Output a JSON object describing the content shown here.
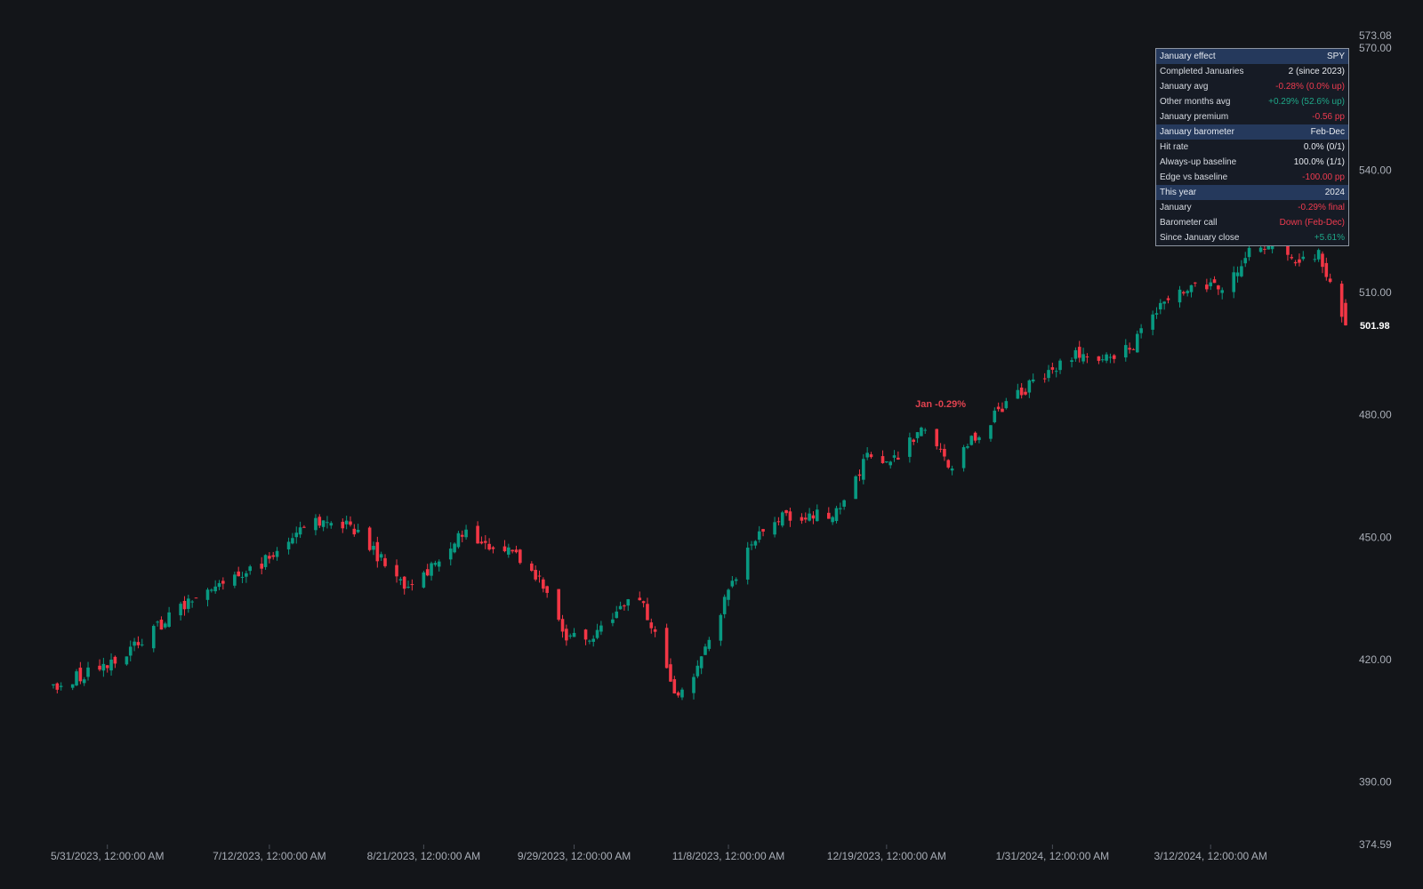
{
  "chart_data": {
    "type": "candlestick",
    "symbol": "SPY",
    "colors": {
      "background": "#131519",
      "up": "#089981",
      "down": "#f23645",
      "axis_text": "#a8adb6"
    },
    "y_axis": {
      "range": [
        374.59,
        573.08
      ],
      "ticks": [
        "573.08",
        "570.00",
        "540.00",
        "510.00",
        "480.00",
        "450.00",
        "420.00",
        "390.00",
        "374.59"
      ],
      "last_price": "501.98",
      "position": "right"
    },
    "x_axis": {
      "tick_labels": [
        "5/31/2023, 12:00:00 AM",
        "7/12/2023, 12:00:00 AM",
        "8/21/2023, 12:00:00 AM",
        "9/29/2023, 12:00:00 AM",
        "11/8/2023, 12:00:00 AM",
        "12/19/2023, 12:00:00 AM",
        "1/31/2024, 12:00:00 AM",
        "3/12/2024, 12:00:00 AM"
      ],
      "tick_dates": [
        "2023-05-31",
        "2023-07-12",
        "2023-08-21",
        "2023-09-29",
        "2023-11-08",
        "2023-12-19",
        "2024-01-31",
        "2024-03-12"
      ],
      "range": [
        "2023-05-17",
        "2024-04-16"
      ]
    },
    "grid": false,
    "annotation": {
      "text": "Jan -0.29%",
      "date": "2024-01-02",
      "price": 481.5
    },
    "price_path": [
      {
        "date": "2023-05-17",
        "price": 413.5
      },
      {
        "date": "2023-06-01",
        "price": 419
      },
      {
        "date": "2023-06-20",
        "price": 433
      },
      {
        "date": "2023-07-04",
        "price": 440
      },
      {
        "date": "2023-07-12",
        "price": 445
      },
      {
        "date": "2023-07-19",
        "price": 452
      },
      {
        "date": "2023-07-27",
        "price": 455
      },
      {
        "date": "2023-08-03",
        "price": 452
      },
      {
        "date": "2023-08-16",
        "price": 438
      },
      {
        "date": "2023-08-21",
        "price": 440
      },
      {
        "date": "2023-08-31",
        "price": 451
      },
      {
        "date": "2023-09-05",
        "price": 448
      },
      {
        "date": "2023-09-12",
        "price": 448
      },
      {
        "date": "2023-09-20",
        "price": 439
      },
      {
        "date": "2023-09-27",
        "price": 426
      },
      {
        "date": "2023-10-03",
        "price": 424
      },
      {
        "date": "2023-10-09",
        "price": 431
      },
      {
        "date": "2023-10-16",
        "price": 436
      },
      {
        "date": "2023-10-26",
        "price": 410
      },
      {
        "date": "2023-10-31",
        "price": 418
      },
      {
        "date": "2023-11-08",
        "price": 437
      },
      {
        "date": "2023-11-14",
        "price": 448
      },
      {
        "date": "2023-11-21",
        "price": 455
      },
      {
        "date": "2023-11-28",
        "price": 455
      },
      {
        "date": "2023-12-06",
        "price": 456
      },
      {
        "date": "2023-12-14",
        "price": 470
      },
      {
        "date": "2023-12-20",
        "price": 468
      },
      {
        "date": "2023-12-28",
        "price": 477
      },
      {
        "date": "2024-01-05",
        "price": 467
      },
      {
        "date": "2024-01-12",
        "price": 476
      },
      {
        "date": "2024-01-22",
        "price": 485
      },
      {
        "date": "2024-01-29",
        "price": 490
      },
      {
        "date": "2024-02-06",
        "price": 495
      },
      {
        "date": "2024-02-13",
        "price": 494
      },
      {
        "date": "2024-02-20",
        "price": 496
      },
      {
        "date": "2024-02-29",
        "price": 508
      },
      {
        "date": "2024-03-08",
        "price": 512
      },
      {
        "date": "2024-03-15",
        "price": 511
      },
      {
        "date": "2024-03-22",
        "price": 520
      },
      {
        "date": "2024-03-28",
        "price": 523
      },
      {
        "date": "2024-04-02",
        "price": 518
      },
      {
        "date": "2024-04-09",
        "price": 520
      },
      {
        "date": "2024-04-12",
        "price": 513
      },
      {
        "date": "2024-04-16",
        "price": 501.98
      }
    ]
  },
  "stats_panel": {
    "rows": [
      {
        "label": "January effect",
        "value": "SPY",
        "kind": "section",
        "tone": "neutral"
      },
      {
        "label": "Completed Januaries",
        "value": "2 (since 2023)",
        "kind": "row",
        "tone": "neutral"
      },
      {
        "label": "January avg",
        "value": "-0.28% (0.0% up)",
        "kind": "row",
        "tone": "down"
      },
      {
        "label": "Other months avg",
        "value": "+0.29% (52.6% up)",
        "kind": "row",
        "tone": "up"
      },
      {
        "label": "January premium",
        "value": "-0.56 pp",
        "kind": "row",
        "tone": "down"
      },
      {
        "label": "January barometer",
        "value": "Feb-Dec",
        "kind": "section",
        "tone": "neutral"
      },
      {
        "label": "Hit rate",
        "value": "0.0% (0/1)",
        "kind": "row",
        "tone": "neutral"
      },
      {
        "label": "Always-up baseline",
        "value": "100.0% (1/1)",
        "kind": "row",
        "tone": "neutral"
      },
      {
        "label": "Edge vs baseline",
        "value": "-100.00 pp",
        "kind": "row",
        "tone": "down"
      },
      {
        "label": "This year",
        "value": "2024",
        "kind": "section",
        "tone": "neutral"
      },
      {
        "label": "January",
        "value": "-0.29% final",
        "kind": "row",
        "tone": "down"
      },
      {
        "label": "Barometer call",
        "value": "Down (Feb-Dec)",
        "kind": "row",
        "tone": "down"
      },
      {
        "label": "Since January close",
        "value": "+5.61%",
        "kind": "row",
        "tone": "up"
      }
    ]
  }
}
